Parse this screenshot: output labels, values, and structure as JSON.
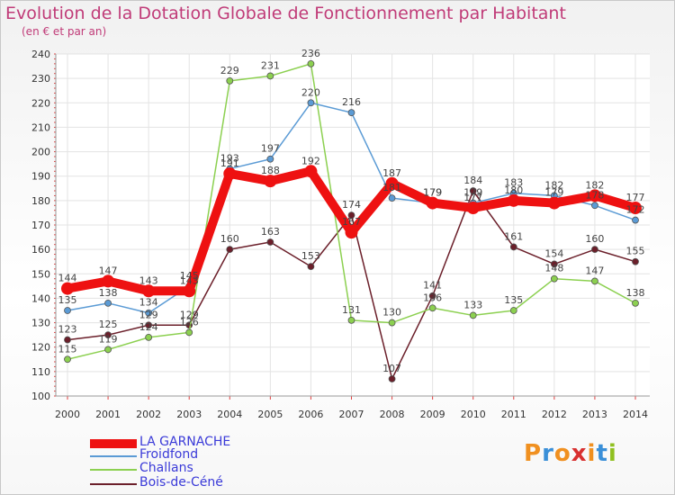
{
  "header": {
    "title": "Evolution de la Dotation Globale de Fonctionnement par Habitant",
    "subtitle": "(en € et par an)"
  },
  "logo": {
    "text": "Proxiti",
    "colors": [
      "#f09020",
      "#3a8fd8",
      "#f09020",
      "#d83030",
      "#f09020",
      "#3a8fd8",
      "#90c020"
    ]
  },
  "chart_data": {
    "type": "line",
    "title": "Evolution de la Dotation Globale de Fonctionnement par Habitant",
    "subtitle": "(en € et par an)",
    "xlabel": "",
    "ylabel": "",
    "x": [
      "2000",
      "2001",
      "2002",
      "2003",
      "2004",
      "2005",
      "2006",
      "2007",
      "2008",
      "2009",
      "2010",
      "2011",
      "2012",
      "2013",
      "2014"
    ],
    "ylim": [
      100,
      240
    ],
    "yticks": [
      100,
      110,
      120,
      130,
      140,
      150,
      160,
      170,
      180,
      190,
      200,
      210,
      220,
      230,
      240
    ],
    "grid": true,
    "legend": "bottom-left",
    "series": [
      {
        "name": "LA GARNACHE",
        "color": "#ee1111",
        "values": [
          144,
          147,
          143,
          143,
          191,
          188,
          192,
          167,
          187,
          179,
          177,
          180,
          179,
          182,
          177
        ]
      },
      {
        "name": "Froidfond",
        "color": "#5b9bd5",
        "values": [
          135,
          138,
          134,
          145,
          193,
          197,
          220,
          216,
          181,
          179,
          179,
          183,
          182,
          178,
          172
        ]
      },
      {
        "name": "Challans",
        "color": "#8cd050",
        "values": [
          115,
          119,
          124,
          126,
          229,
          231,
          236,
          131,
          130,
          136,
          133,
          135,
          148,
          147,
          138
        ]
      },
      {
        "name": "Bois-de-Céné",
        "color": "#6b1f2a",
        "values": [
          123,
          125,
          129,
          129,
          160,
          163,
          153,
          174,
          107,
          141,
          184,
          161,
          154,
          160,
          155
        ]
      }
    ]
  }
}
